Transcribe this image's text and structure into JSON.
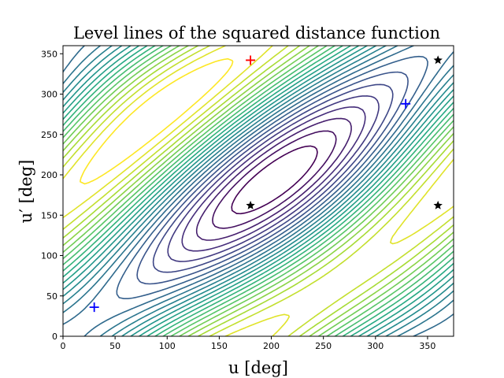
{
  "chart_data": {
    "type": "contour",
    "title": "Level lines of the squared distance function",
    "xlabel": "u [deg]",
    "ylabel": "u′ [deg]",
    "xlim": [
      0,
      375
    ],
    "ylim": [
      0,
      360
    ],
    "xticks": [
      0,
      50,
      100,
      150,
      200,
      250,
      300,
      350
    ],
    "yticks": [
      0,
      50,
      100,
      150,
      200,
      250,
      300,
      350
    ],
    "colormap": "viridis",
    "grid": false,
    "markers": [
      {
        "kind": "red-plus",
        "color": "#ff0000",
        "x": 180,
        "y": 342
      },
      {
        "kind": "blue-plus",
        "color": "#0000ff",
        "x": 30,
        "y": 36
      },
      {
        "kind": "blue-plus",
        "color": "#0000ff",
        "x": 329,
        "y": 288
      },
      {
        "kind": "black-star",
        "color": "#000000",
        "x": 180,
        "y": 162
      },
      {
        "kind": "black-star",
        "color": "#000000",
        "x": 360,
        "y": 162
      },
      {
        "kind": "black-star",
        "color": "#000000",
        "x": 360,
        "y": 342
      }
    ]
  }
}
